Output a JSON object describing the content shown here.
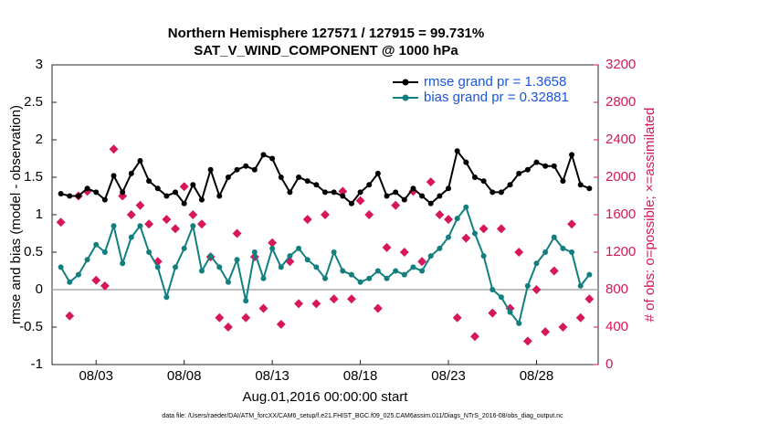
{
  "chart_data": {
    "type": "line",
    "title": "Northern Hemisphere 127571 / 127915 = 99.731%",
    "subtitle": "SAT_V_WIND_COMPONENT @ 1000 hPa",
    "y_label": "rmse and bias (model - observation)",
    "y2_label": "# of obs: o=possible; ×=assimilated",
    "x_label": "Aug.01,2016 00:00:00 start",
    "footnote": "data file: /Users/raeder/DAI/ATM_forcXX/CAM6_setup/f.e21.FHIST_BGC.f09_025.CAM6assim.011/Diags_NTrS_2016-08/obs_diag_output.nc",
    "xlim": [
      0.5,
      31.5
    ],
    "xticks": [
      {
        "value": 3,
        "label": "08/03"
      },
      {
        "value": 8,
        "label": "08/08"
      },
      {
        "value": 13,
        "label": "08/13"
      },
      {
        "value": 18,
        "label": "08/18"
      },
      {
        "value": 23,
        "label": "08/23"
      },
      {
        "value": 28,
        "label": "08/28"
      }
    ],
    "ylim": [
      -1,
      3
    ],
    "yticks": [
      -1,
      -0.5,
      0,
      0.5,
      1,
      1.5,
      2,
      2.5,
      3
    ],
    "y2lim": [
      0,
      3200
    ],
    "y2ticks": [
      0,
      400,
      800,
      1200,
      1600,
      2000,
      2400,
      2800,
      3200
    ],
    "legend": "upper right",
    "zero_line": true,
    "x": [
      1,
      1.5,
      2,
      2.5,
      3,
      3.5,
      4,
      4.5,
      5,
      5.5,
      6,
      6.5,
      7,
      7.5,
      8,
      8.5,
      9,
      9.5,
      10,
      10.5,
      11,
      11.5,
      12,
      12.5,
      13,
      13.5,
      14,
      14.5,
      15,
      15.5,
      16,
      16.5,
      17,
      17.5,
      18,
      18.5,
      19,
      19.5,
      20,
      20.5,
      21,
      21.5,
      22,
      22.5,
      23,
      23.5,
      24,
      24.5,
      25,
      25.5,
      26,
      26.5,
      27,
      27.5,
      28,
      28.5,
      29,
      29.5,
      30,
      30.5,
      31
    ],
    "series": [
      {
        "name": "rmse grand pr = 1.3658",
        "color": "#000000",
        "values": [
          1.28,
          1.25,
          1.25,
          1.35,
          1.3,
          1.2,
          1.52,
          1.3,
          1.55,
          1.72,
          1.45,
          1.35,
          1.25,
          1.3,
          1.15,
          1.4,
          1.2,
          1.6,
          1.25,
          1.5,
          1.6,
          1.65,
          1.6,
          1.8,
          1.75,
          1.5,
          1.3,
          1.5,
          1.45,
          1.4,
          1.3,
          1.3,
          1.25,
          1.15,
          1.3,
          1.4,
          1.55,
          1.25,
          1.3,
          1.2,
          1.35,
          1.25,
          1.15,
          1.25,
          1.35,
          1.85,
          1.7,
          1.5,
          1.45,
          1.3,
          1.3,
          1.4,
          1.55,
          1.6,
          1.7,
          1.65,
          1.65,
          1.45,
          1.8,
          1.4,
          1.35
        ]
      },
      {
        "name": "bias grand pr = 0.32881",
        "color": "#127f7f",
        "values": [
          0.3,
          0.1,
          0.2,
          0.4,
          0.6,
          0.5,
          0.85,
          0.35,
          0.7,
          0.85,
          0.5,
          0.3,
          -0.1,
          0.3,
          0.55,
          0.85,
          0.25,
          0.45,
          0.3,
          0.1,
          0.4,
          -0.15,
          0.5,
          0.15,
          0.55,
          0.3,
          0.45,
          0.55,
          0.4,
          0.3,
          0.15,
          0.5,
          0.25,
          0.2,
          0.1,
          0.15,
          0.25,
          0.15,
          0.25,
          0.2,
          0.3,
          0.25,
          0.45,
          0.55,
          0.7,
          0.95,
          1.1,
          0.75,
          0.45,
          0,
          -0.1,
          -0.3,
          -0.45,
          0.05,
          0.35,
          0.5,
          0.7,
          0.55,
          0.5,
          0.05,
          0.2
        ]
      },
      {
        "color": "#d6175a",
        "axis": "y2",
        "values": [
          1520,
          520,
          1800,
          1850,
          900,
          840,
          2300,
          1800,
          1600,
          1700,
          1500,
          1100,
          1550,
          1450,
          1900,
          1600,
          1500,
          1150,
          500,
          400,
          1400,
          500,
          1150,
          600,
          1300,
          430,
          1100,
          650,
          1550,
          650,
          1600,
          700,
          1850,
          700,
          1750,
          1600,
          600,
          1250,
          1700,
          1200,
          1850,
          1100,
          1950,
          1600,
          1550,
          500,
          1350,
          300,
          1450,
          550,
          1450,
          600,
          1200,
          250,
          800,
          350,
          1000,
          400,
          1500,
          500,
          700
        ]
      }
    ]
  }
}
